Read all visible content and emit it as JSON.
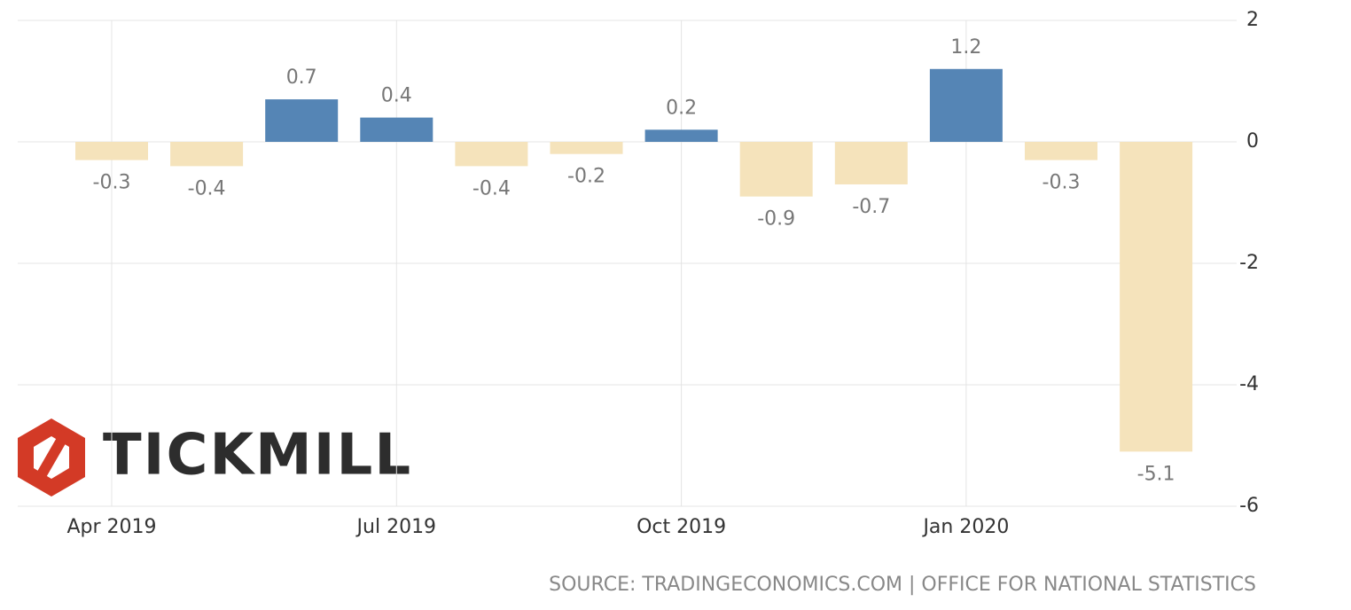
{
  "chart_data": {
    "type": "bar",
    "categories": [
      "Apr 2019",
      null,
      null,
      "Jul 2019",
      null,
      null,
      "Oct 2019",
      null,
      null,
      "Jan 2020",
      null,
      null
    ],
    "values": [
      -0.3,
      -0.4,
      0.7,
      0.4,
      -0.4,
      -0.2,
      0.2,
      -0.9,
      -0.7,
      1.2,
      -0.3,
      -5.1
    ],
    "positive_color": "#5585b5",
    "negative_color": "#f5e3bb",
    "ylim": [
      -6,
      2
    ],
    "yticks": [
      2,
      0,
      -2,
      -4,
      -6
    ],
    "grid": true,
    "y_axis_side": "right",
    "source": "SOURCE: TRADINGECONOMICS.COM | OFFICE FOR NATIONAL STATISTICS"
  },
  "logo": "TICKMILL"
}
